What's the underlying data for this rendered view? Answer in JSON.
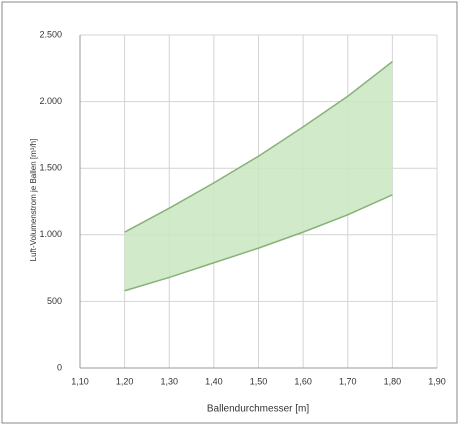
{
  "chart_data": {
    "type": "band",
    "x_label": "Ballendurchmesser [m]",
    "y_label": "Luft-Volumenstrom je Ballen [m³/h]",
    "x": [
      1.2,
      1.3,
      1.4,
      1.5,
      1.6,
      1.7,
      1.8
    ],
    "series": [
      {
        "color": "#86b277",
        "values": [
          580,
          680,
          790,
          900,
          1020,
          1150,
          1300
        ]
      },
      {
        "color": "#86b277",
        "values": [
          1020,
          1200,
          1390,
          1590,
          1810,
          2040,
          2300
        ]
      }
    ],
    "fill_color": "#c9e7c1",
    "xlim": [
      1.1,
      1.9
    ],
    "xticks": [
      {
        "value": 1.1,
        "label": "1,10"
      },
      {
        "value": 1.2,
        "label": "1,20"
      },
      {
        "value": 1.3,
        "label": "1,30"
      },
      {
        "value": 1.4,
        "label": "1,40"
      },
      {
        "value": 1.5,
        "label": "1,50"
      },
      {
        "value": 1.6,
        "label": "1,60"
      },
      {
        "value": 1.7,
        "label": "1,70"
      },
      {
        "value": 1.8,
        "label": "1,80"
      },
      {
        "value": 1.9,
        "label": "1,90"
      }
    ],
    "ylim": [
      0,
      2500
    ],
    "yticks": [
      0,
      500,
      {
        "value": 1000,
        "label": "1.000"
      },
      {
        "value": 1500,
        "label": "1.500"
      },
      {
        "value": 2000,
        "label": "2.000"
      },
      {
        "value": 2500,
        "label": "2.500"
      }
    ],
    "grid": true
  }
}
